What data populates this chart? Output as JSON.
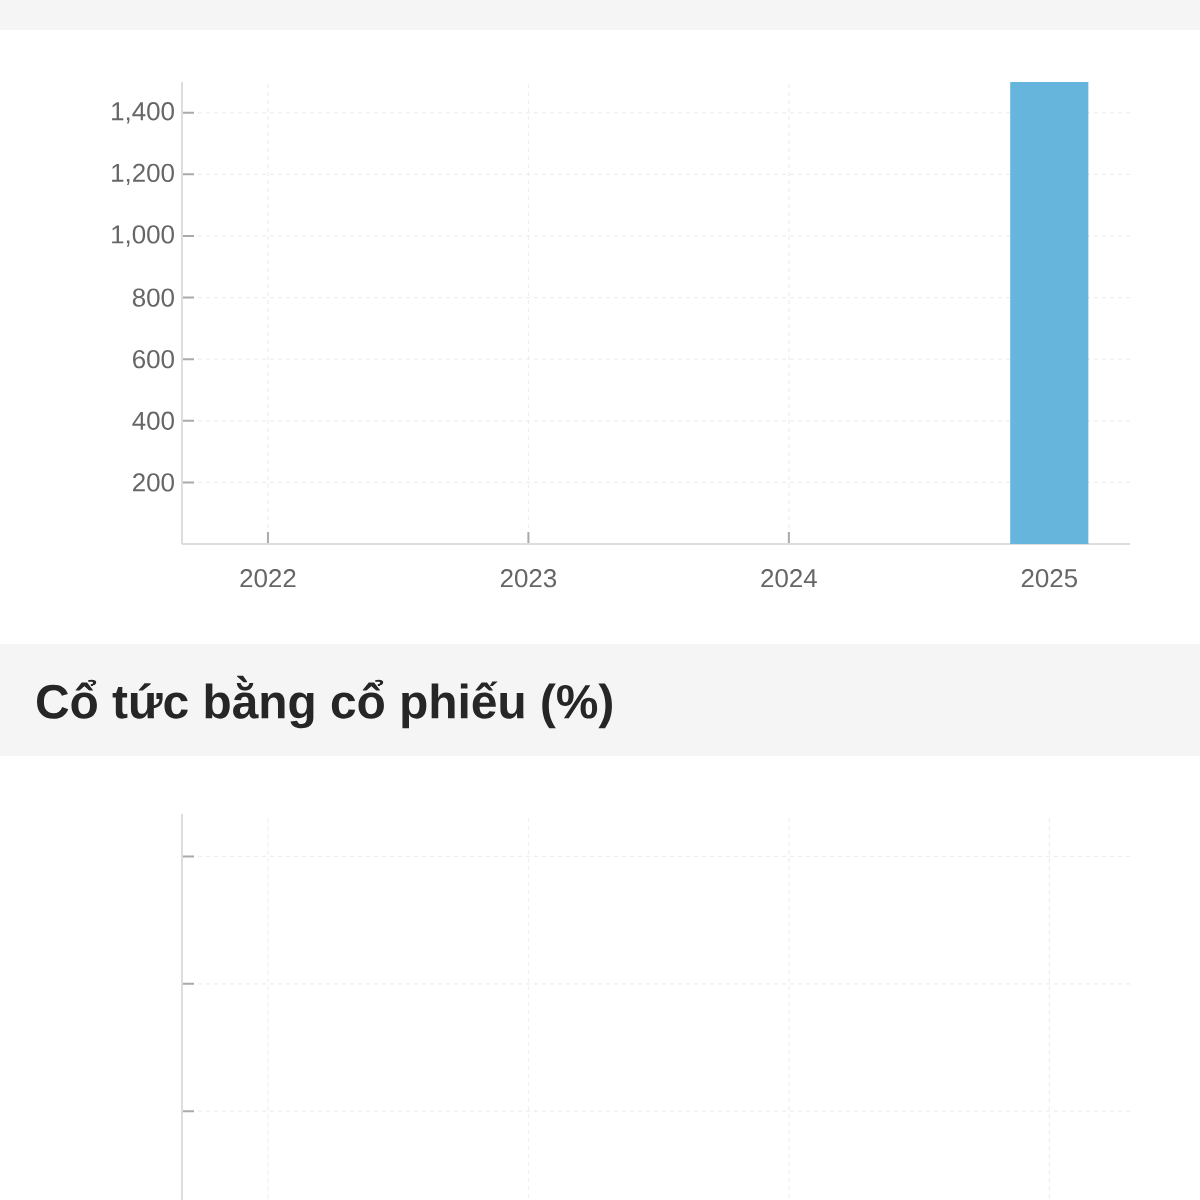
{
  "chart_data": [
    {
      "type": "bar",
      "categories": [
        "2022",
        "2023",
        "2024",
        "2025"
      ],
      "values": [
        null,
        null,
        null,
        1500
      ],
      "color": "#66b5dc",
      "ylim": [
        0,
        1500
      ],
      "yticks": [
        {
          "value": 200,
          "label": "200"
        },
        {
          "value": 400,
          "label": "400"
        },
        {
          "value": 600,
          "label": "600"
        },
        {
          "value": 800,
          "label": "800"
        },
        {
          "value": 1000,
          "label": "1,000"
        },
        {
          "value": 1200,
          "label": "1,200"
        },
        {
          "value": 1400,
          "label": "1,400"
        }
      ],
      "grid": true
    },
    {
      "type": "other",
      "title": "Cổ tức bằng cổ phiếu (%)"
    }
  ]
}
